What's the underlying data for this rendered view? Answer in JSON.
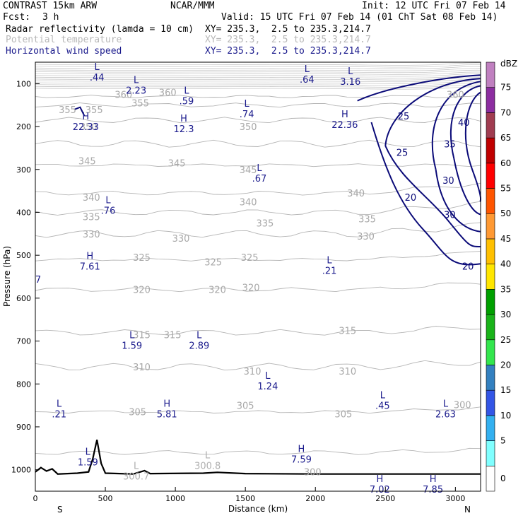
{
  "header": {
    "model": "CONTRAST 15km ARW",
    "center": "NCAR/MMM",
    "init": "Init: 12 UTC Fri 07 Feb 14",
    "fcst_label": "Fcst:",
    "fcst_value": "3 h",
    "valid": "Valid: 15 UTC Fri 07 Feb 14 (01 ChT Sat 08 Feb 14)",
    "fields": [
      {
        "name": "Radar reflectivity (lamda = 10 cm)",
        "xy": "XY= 235.3,  2.5 to 235.3,214.7"
      },
      {
        "name": "Potential temperature",
        "xy": "XY= 235.3,  2.5 to 235.3,214.7"
      },
      {
        "name": "Horizontal wind speed",
        "xy": "XY= 235.3,  2.5 to 235.3,214.7"
      }
    ]
  },
  "chart_data": {
    "type": "cross-section contour",
    "xlabel": "Distance (km)",
    "ylabel": "Pressure (hPa)",
    "xlim": [
      0,
      3180
    ],
    "ylim": [
      1050,
      50
    ],
    "xticks": [
      0,
      500,
      1000,
      1500,
      2000,
      2500,
      3000
    ],
    "yticks": [
      100,
      200,
      300,
      400,
      500,
      600,
      700,
      800,
      900,
      1000
    ],
    "x_ends": {
      "left": "S",
      "right": "N"
    },
    "colorbar": {
      "unit": "dBZ",
      "levels": [
        0,
        5,
        10,
        15,
        20,
        25,
        30,
        35,
        40,
        45,
        50,
        55,
        60,
        65,
        70,
        75
      ],
      "colors": [
        "#ffffff",
        "#80ffff",
        "#33b0f0",
        "#3355e6",
        "#3380c0",
        "#33e64d",
        "#19b319",
        "#00a000",
        "#ffe600",
        "#ffc000",
        "#ff9933",
        "#ff5500",
        "#ff0000",
        "#c00000",
        "#a03c50",
        "#8c2da0",
        "#c080c0"
      ]
    },
    "theta_labels": [
      {
        "v": "355",
        "x": 230,
        "p": 160
      },
      {
        "v": "355",
        "x": 420,
        "p": 160
      },
      {
        "v": "360",
        "x": 630,
        "p": 125
      },
      {
        "v": "355",
        "x": 750,
        "p": 145
      },
      {
        "v": "360",
        "x": 945,
        "p": 120
      },
      {
        "v": "360",
        "x": 3000,
        "p": 125
      },
      {
        "v": "350",
        "x": 380,
        "p": 200
      },
      {
        "v": "350",
        "x": 1520,
        "p": 200
      },
      {
        "v": "345",
        "x": 370,
        "p": 280
      },
      {
        "v": "345",
        "x": 1010,
        "p": 285
      },
      {
        "v": "345",
        "x": 1520,
        "p": 300
      },
      {
        "v": "340",
        "x": 400,
        "p": 365
      },
      {
        "v": "340",
        "x": 1520,
        "p": 375
      },
      {
        "v": "340",
        "x": 2290,
        "p": 355
      },
      {
        "v": "335",
        "x": 400,
        "p": 410
      },
      {
        "v": "335",
        "x": 1640,
        "p": 425
      },
      {
        "v": "335",
        "x": 2370,
        "p": 415
      },
      {
        "v": "330",
        "x": 400,
        "p": 450
      },
      {
        "v": "330",
        "x": 1040,
        "p": 460
      },
      {
        "v": "330",
        "x": 2360,
        "p": 455
      },
      {
        "v": "325",
        "x": 760,
        "p": 505
      },
      {
        "v": "325",
        "x": 1270,
        "p": 515
      },
      {
        "v": "325",
        "x": 1530,
        "p": 505
      },
      {
        "v": "320",
        "x": 760,
        "p": 580
      },
      {
        "v": "320",
        "x": 1300,
        "p": 580
      },
      {
        "v": "320",
        "x": 1540,
        "p": 575
      },
      {
        "v": "315",
        "x": 760,
        "p": 685
      },
      {
        "v": "315",
        "x": 980,
        "p": 685
      },
      {
        "v": "315",
        "x": 2230,
        "p": 675
      },
      {
        "v": "310",
        "x": 760,
        "p": 760
      },
      {
        "v": "310",
        "x": 1550,
        "p": 770
      },
      {
        "v": "310",
        "x": 2230,
        "p": 770
      },
      {
        "v": "305",
        "x": 730,
        "p": 865
      },
      {
        "v": "305",
        "x": 1500,
        "p": 850
      },
      {
        "v": "305",
        "x": 2200,
        "p": 870
      },
      {
        "v": "300",
        "x": 3050,
        "p": 848
      },
      {
        "v": "300",
        "x": 1980,
        "p": 1005
      }
    ],
    "speed_contours": [
      20,
      25,
      30,
      35,
      40
    ],
    "speed_labels": [
      {
        "v": "25",
        "x": 2630,
        "p": 175
      },
      {
        "v": "40",
        "x": 3060,
        "p": 190
      },
      {
        "v": "35",
        "x": 2960,
        "p": 240
      },
      {
        "v": "25",
        "x": 2620,
        "p": 260
      },
      {
        "v": "30",
        "x": 2950,
        "p": 325
      },
      {
        "v": "20",
        "x": 2680,
        "p": 365
      },
      {
        "v": "30",
        "x": 2960,
        "p": 405
      },
      {
        "v": "20",
        "x": 3090,
        "p": 525
      }
    ],
    "extrema": [
      {
        "k": "L",
        "v": ".44",
        "x": 440,
        "p": 75
      },
      {
        "k": "L",
        "v": "2.23",
        "x": 720,
        "p": 105
      },
      {
        "k": "L",
        "v": ".59",
        "x": 1080,
        "p": 130
      },
      {
        "k": "L",
        "v": ".74",
        "x": 1510,
        "p": 160
      },
      {
        "k": "L",
        "v": ".64",
        "x": 1940,
        "p": 80
      },
      {
        "k": "L",
        "v": "3.16",
        "x": 2250,
        "p": 85
      },
      {
        "k": "H",
        "v": "22.33",
        "x": 360,
        "p": 190
      },
      {
        "k": "H",
        "v": "12.3",
        "x": 1060,
        "p": 195
      },
      {
        "k": "H",
        "v": "22.36",
        "x": 2210,
        "p": 185
      },
      {
        "k": "L",
        "v": ".67",
        "x": 1600,
        "p": 310
      },
      {
        "k": "L",
        "v": ".76",
        "x": 520,
        "p": 385
      },
      {
        "k": "H",
        "v": "7.61",
        "x": 390,
        "p": 515
      },
      {
        "k": "L",
        "v": ".21",
        "x": 2100,
        "p": 525
      },
      {
        "k": "L",
        "v": "1.59",
        "x": 690,
        "p": 700
      },
      {
        "k": "L",
        "v": "2.89",
        "x": 1170,
        "p": 700
      },
      {
        "k": "L",
        "v": "1.24",
        "x": 1660,
        "p": 795
      },
      {
        "k": "L",
        "v": ".45",
        "x": 2480,
        "p": 840
      },
      {
        "k": "L",
        "v": ".21",
        "x": 170,
        "p": 860
      },
      {
        "k": "H",
        "v": "5.81",
        "x": 940,
        "p": 860
      },
      {
        "k": "L",
        "v": "2.63",
        "x": 2930,
        "p": 860
      },
      {
        "k": "H",
        "v": "7.59",
        "x": 1900,
        "p": 965
      },
      {
        "k": "L",
        "v": "1.59",
        "x": 375,
        "p": 972
      },
      {
        "k": "H",
        "v": "7.02",
        "x": 2460,
        "p": 1035
      },
      {
        "k": "H",
        "v": "7.85",
        "x": 2840,
        "p": 1035
      }
    ],
    "grey_extrema": [
      {
        "k": "L",
        "v": "300.7",
        "x": 720,
        "p": 1005
      },
      {
        "k": "L",
        "v": "300.8",
        "x": 1230,
        "p": 980
      }
    ],
    "edge_labels": [
      {
        "v": "7",
        "x": 20,
        "p": 556
      }
    ]
  }
}
